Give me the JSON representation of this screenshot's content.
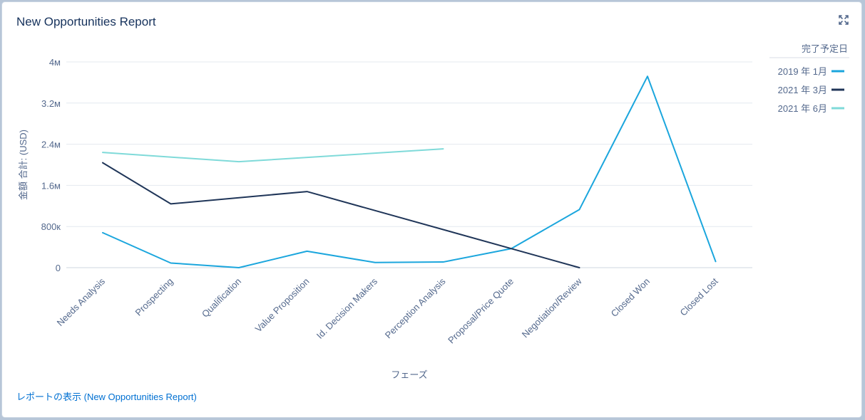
{
  "title": "New Opportunities Report",
  "report_link": "レポートの表示 (New Opportunities Report)",
  "icons": {
    "expand": "expand-icon"
  },
  "chart_data": {
    "type": "line",
    "xlabel": "フェーズ",
    "ylabel": "金額 合計: (USD)",
    "ylim": [
      0,
      4000000
    ],
    "yticks": [
      {
        "value": 0,
        "label": "0"
      },
      {
        "value": 800000,
        "label": "800к"
      },
      {
        "value": 1600000,
        "label": "1.6м"
      },
      {
        "value": 2400000,
        "label": "2.4м"
      },
      {
        "value": 3200000,
        "label": "3.2м"
      },
      {
        "value": 4000000,
        "label": "4м"
      }
    ],
    "categories": [
      "Needs Analysis",
      "Prospecting",
      "Qualification",
      "Value Proposition",
      "Id. Decision Makers",
      "Perception Analysis",
      "Proposal/Price Quote",
      "Negotiation/Review",
      "Closed Won",
      "Closed Lost"
    ],
    "legend": {
      "title": "完了予定日",
      "position": "top-right"
    },
    "grid": true,
    "series": [
      {
        "name": "2019 年 1月",
        "color": "#1ba6dd",
        "values": [
          680000,
          90000,
          0,
          320000,
          100000,
          110000,
          370000,
          1130000,
          3720000,
          120000
        ]
      },
      {
        "name": "2021 年 3月",
        "color": "#1f3558",
        "values": [
          2040000,
          1240000,
          null,
          1480000,
          null,
          null,
          null,
          0,
          null,
          null
        ]
      },
      {
        "name": "2021 年 6月",
        "color": "#7fdad9",
        "values": [
          2240000,
          null,
          2060000,
          null,
          null,
          2310000,
          null,
          null,
          null,
          null
        ]
      }
    ]
  }
}
